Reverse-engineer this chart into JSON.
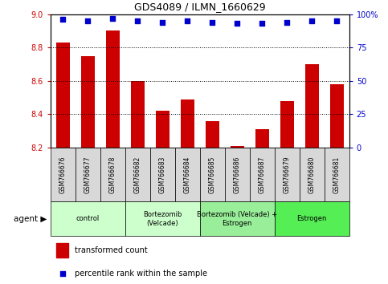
{
  "title": "GDS4089 / ILMN_1660629",
  "samples": [
    "GSM766676",
    "GSM766677",
    "GSM766678",
    "GSM766682",
    "GSM766683",
    "GSM766684",
    "GSM766685",
    "GSM766686",
    "GSM766687",
    "GSM766679",
    "GSM766680",
    "GSM766681"
  ],
  "bar_values": [
    8.83,
    8.75,
    8.9,
    8.6,
    8.42,
    8.49,
    8.36,
    8.21,
    8.31,
    8.48,
    8.7,
    8.58
  ],
  "percentile_values": [
    96,
    95,
    97,
    95,
    94,
    95,
    94,
    93,
    93,
    94,
    95,
    95
  ],
  "bar_color": "#cc0000",
  "dot_color": "#0000cc",
  "ylim_left": [
    8.2,
    9.0
  ],
  "ylim_right": [
    0,
    100
  ],
  "yticks_left": [
    8.2,
    8.4,
    8.6,
    8.8,
    9.0
  ],
  "yticks_right": [
    0,
    25,
    50,
    75,
    100
  ],
  "groups": [
    {
      "label": "control",
      "start": 0,
      "end": 3,
      "color": "#ccffcc"
    },
    {
      "label": "Bortezomib\n(Velcade)",
      "start": 3,
      "end": 6,
      "color": "#ccffcc"
    },
    {
      "label": "Bortezomib (Velcade) +\nEstrogen",
      "start": 6,
      "end": 9,
      "color": "#99ee99"
    },
    {
      "label": "Estrogen",
      "start": 9,
      "end": 12,
      "color": "#55ee55"
    }
  ],
  "agent_label": "agent",
  "legend_bar_label": "transformed count",
  "legend_dot_label": "percentile rank within the sample",
  "background_color": "#ffffff",
  "grid_color": "#000000",
  "sample_box_color": "#d8d8d8"
}
